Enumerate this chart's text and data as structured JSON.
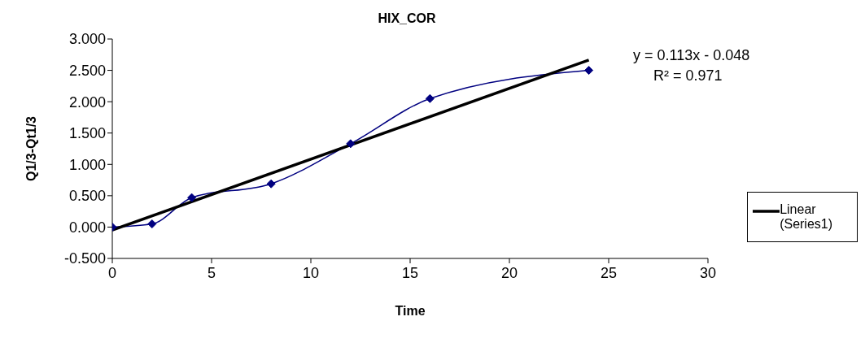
{
  "chart_data": {
    "type": "line",
    "title": "HIX_COR",
    "xlabel": "Time",
    "ylabel": "Q1/3-Qt1/3",
    "series": [
      {
        "color": "#000080",
        "x": [
          0,
          2,
          4,
          8,
          12,
          16,
          24
        ],
        "values": [
          0,
          0.05,
          0.47,
          0.69,
          1.33,
          2.05,
          2.5
        ],
        "marker": "diamond"
      },
      {
        "name": "Linear (Series1)",
        "type": "line",
        "color": "#000000",
        "x": [
          0,
          24
        ],
        "values": [
          -0.048,
          2.664
        ],
        "marker": "none"
      }
    ],
    "xlim": [
      0,
      30
    ],
    "xticks": [
      0,
      5,
      10,
      15,
      20,
      25,
      30
    ],
    "ylim": [
      -0.5,
      3
    ],
    "yticks": [
      {
        "value": -0.5,
        "label": "-0.500"
      },
      {
        "value": 0,
        "label": "0.000"
      },
      {
        "value": 0.5,
        "label": "0.500"
      },
      {
        "value": 1,
        "label": "1.000"
      },
      {
        "value": 1.5,
        "label": "1.500"
      },
      {
        "value": 2,
        "label": "2.000"
      },
      {
        "value": 2.5,
        "label": "2.500"
      },
      {
        "value": 3,
        "label": "3.000"
      }
    ],
    "annotations": [
      "y = 0.113x - 0.048",
      "R² = 0.971"
    ],
    "grid": false,
    "legend": "right",
    "line_style": "solid"
  }
}
